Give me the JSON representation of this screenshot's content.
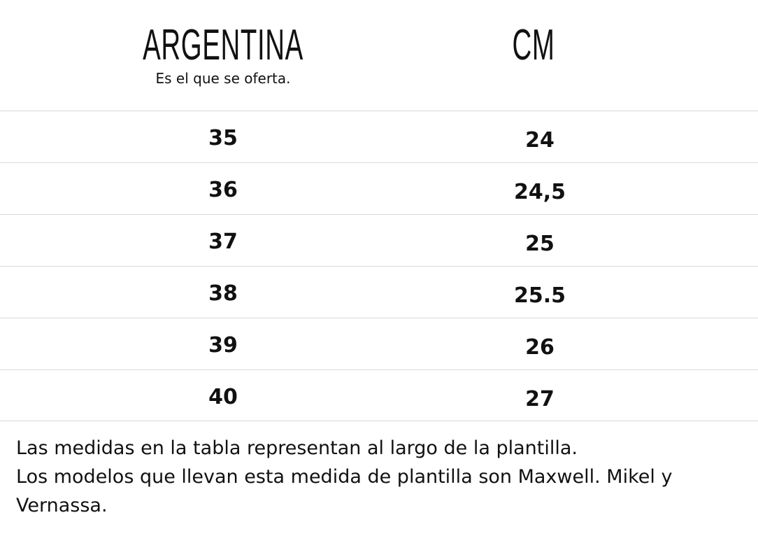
{
  "header": {
    "col_argentina": "ARGENTINA",
    "col_argentina_sub": "Es el que se oferta.",
    "col_cm": "CM"
  },
  "rows": [
    {
      "argentina": "35",
      "cm": "24"
    },
    {
      "argentina": "36",
      "cm": "24,5"
    },
    {
      "argentina": "37",
      "cm": "25"
    },
    {
      "argentina": "38",
      "cm": "25.5"
    },
    {
      "argentina": "39",
      "cm": "26"
    },
    {
      "argentina": "40",
      "cm": "27"
    }
  ],
  "footer": {
    "line1": "Las medidas en la tabla representan al largo de la plantilla.",
    "line2": "Los modelos que llevan esta medida de plantilla son Maxwell. Mikel y Vernassa."
  }
}
